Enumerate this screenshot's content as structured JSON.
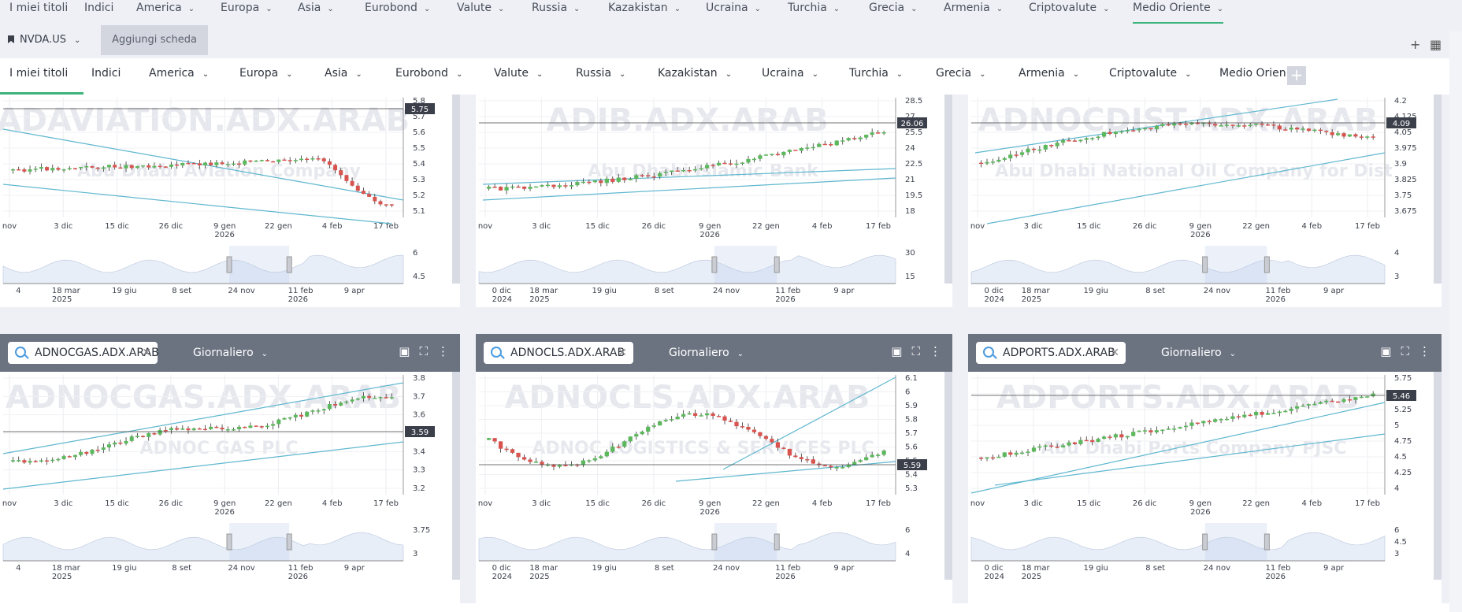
{
  "top_nav": {
    "items": [
      "I miei titoli",
      "Indici",
      "America",
      "Europa",
      "Asia",
      "Eurobond",
      "Valute",
      "Russia",
      "Kazakistan",
      "Ucraina",
      "Turchia",
      "Grecia",
      "Armenia",
      "Criptovalute",
      "Medio Oriente"
    ],
    "active": "Medio Oriente"
  },
  "tab_bar": {
    "ticker": "NVDA.US",
    "add_tab_label": "Aggiungi scheda"
  },
  "category_bar": {
    "items": [
      "I miei titoli",
      "Indici",
      "America",
      "Europa",
      "Asia",
      "Eurobond",
      "Valute",
      "Russia",
      "Kazakistan",
      "Ucraina",
      "Turchia",
      "Grecia",
      "Armenia",
      "Criptovalute",
      "Medio Orien"
    ],
    "active": "I miei titoli"
  },
  "interval_label": "Giornaliero",
  "colors": {
    "up": "#5cb85c",
    "down": "#d9534f",
    "trend": "#5fb7cf",
    "accent": "#3bb37a"
  },
  "charts": [
    {
      "ticker": "ADAVIATION.ADX.ARAB",
      "watermark": "ADAVIATION.ADX.ARAB",
      "company": "Abu Dhabi Aviation Company",
      "price_label": "5.75",
      "y_ticks": [
        "5.8",
        "5.7",
        "5.6",
        "5.5",
        "5.4",
        "5.3",
        "5.2",
        "5.1"
      ],
      "x_ticks": [
        "nov",
        "3 dic",
        "15 dic",
        "26 dic",
        "9 gen",
        "22 gen",
        "4 feb",
        "17 feb"
      ],
      "x_year": "2026",
      "nav_y_ticks": [
        "6",
        "4.5"
      ],
      "nav_x_ticks": [
        "4",
        "18 mar",
        "19 giu",
        "8 set",
        "24 nov",
        "11 feb",
        "9 apr"
      ],
      "nav_years": [
        "2025",
        "2026"
      ]
    },
    {
      "ticker": "ADIB.ADX.ARAB",
      "watermark": "ADIB.ADX.ARAB",
      "company": "Abu Dhabi Islamic Bank",
      "price_label": "26.06",
      "y_ticks": [
        "28.5",
        "27",
        "25.5",
        "24",
        "22.5",
        "21",
        "19.5",
        "18"
      ],
      "x_ticks": [
        "nov",
        "3 dic",
        "15 dic",
        "26 dic",
        "9 gen",
        "22 gen",
        "4 feb",
        "17 feb"
      ],
      "x_year": "2026",
      "nav_y_ticks": [
        "30",
        "15"
      ],
      "nav_x_ticks": [
        "0 dic",
        "18 mar",
        "19 giu",
        "8 set",
        "24 nov",
        "11 feb",
        "9 apr"
      ],
      "nav_years": [
        "2024",
        "2025",
        "2026"
      ]
    },
    {
      "ticker": "ADNOCDIST.ADX.ARAB",
      "watermark": "ADNOCDIST.ADX.ARAB",
      "company": "Abu Dhabi National Oil Company for Dist",
      "price_label": "4.09",
      "y_ticks": [
        "4.2",
        "4.125",
        "4.05",
        "3.975",
        "3.9",
        "3.825",
        "3.75",
        "3.675"
      ],
      "x_ticks": [
        "nov",
        "3 dic",
        "15 dic",
        "26 dic",
        "9 gen",
        "22 gen",
        "4 feb",
        "17 feb"
      ],
      "x_year": "2026",
      "nav_y_ticks": [
        "4",
        "3"
      ],
      "nav_x_ticks": [
        "0 dic",
        "18 mar",
        "19 giu",
        "8 set",
        "24 nov",
        "11 feb",
        "9 apr"
      ],
      "nav_years": [
        "2024",
        "2025",
        "2026"
      ]
    },
    {
      "ticker": "ADNOCGAS.ADX.ARAB",
      "watermark": "ADNOCGAS.ADX.ARAB",
      "company": "ADNOC GAS PLC",
      "price_label": "3.59",
      "y_ticks": [
        "3.8",
        "3.7",
        "3.6",
        "3.5",
        "3.4",
        "3.3",
        "3.2"
      ],
      "x_ticks": [
        "nov",
        "3 dic",
        "15 dic",
        "26 dic",
        "9 gen",
        "22 gen",
        "4 feb",
        "17 feb"
      ],
      "x_year": "2026",
      "nav_y_ticks": [
        "3.75",
        "3"
      ],
      "nav_x_ticks": [
        "4",
        "18 mar",
        "19 giu",
        "8 set",
        "24 nov",
        "11 feb",
        "9 apr"
      ],
      "nav_years": [
        "2025",
        "2026"
      ]
    },
    {
      "ticker": "ADNOCLS.ADX.ARAB",
      "watermark": "ADNOCLS.ADX.ARAB",
      "company": "ADNOC LOGISTICS & SERVICES PLC",
      "price_label": "5.59",
      "y_ticks": [
        "6.1",
        "6",
        "5.9",
        "5.8",
        "5.7",
        "5.6",
        "5.5",
        "5.4",
        "5.3"
      ],
      "x_ticks": [
        "nov",
        "3 dic",
        "15 dic",
        "26 dic",
        "9 gen",
        "22 gen",
        "4 feb",
        "17 feb"
      ],
      "x_year": "2026",
      "nav_y_ticks": [
        "6",
        "4"
      ],
      "nav_x_ticks": [
        "0 dic",
        "18 mar",
        "19 giu",
        "8 set",
        "24 nov",
        "11 feb",
        "9 apr"
      ],
      "nav_years": [
        "2024",
        "2025",
        "2026"
      ]
    },
    {
      "ticker": "ADPORTS.ADX.ARAB",
      "watermark": "ADPORTS.ADX.ARAB",
      "company": "Abu Dhabi Ports Company PJSC",
      "price_label": "5.46",
      "y_ticks": [
        "5.75",
        "5.5",
        "5.25",
        "5",
        "4.75",
        "4.5",
        "4.25",
        "4"
      ],
      "x_ticks": [
        "nov",
        "3 dic",
        "15 dic",
        "26 dic",
        "9 gen",
        "22 gen",
        "4 feb",
        "17 feb"
      ],
      "x_year": "2026",
      "nav_y_ticks": [
        "6",
        "4.5",
        "3"
      ],
      "nav_x_ticks": [
        "0 dic",
        "18 mar",
        "19 giu",
        "8 set",
        "24 nov",
        "11 feb",
        "9 apr"
      ],
      "nav_years": [
        "2024",
        "2025",
        "2026"
      ]
    }
  ]
}
